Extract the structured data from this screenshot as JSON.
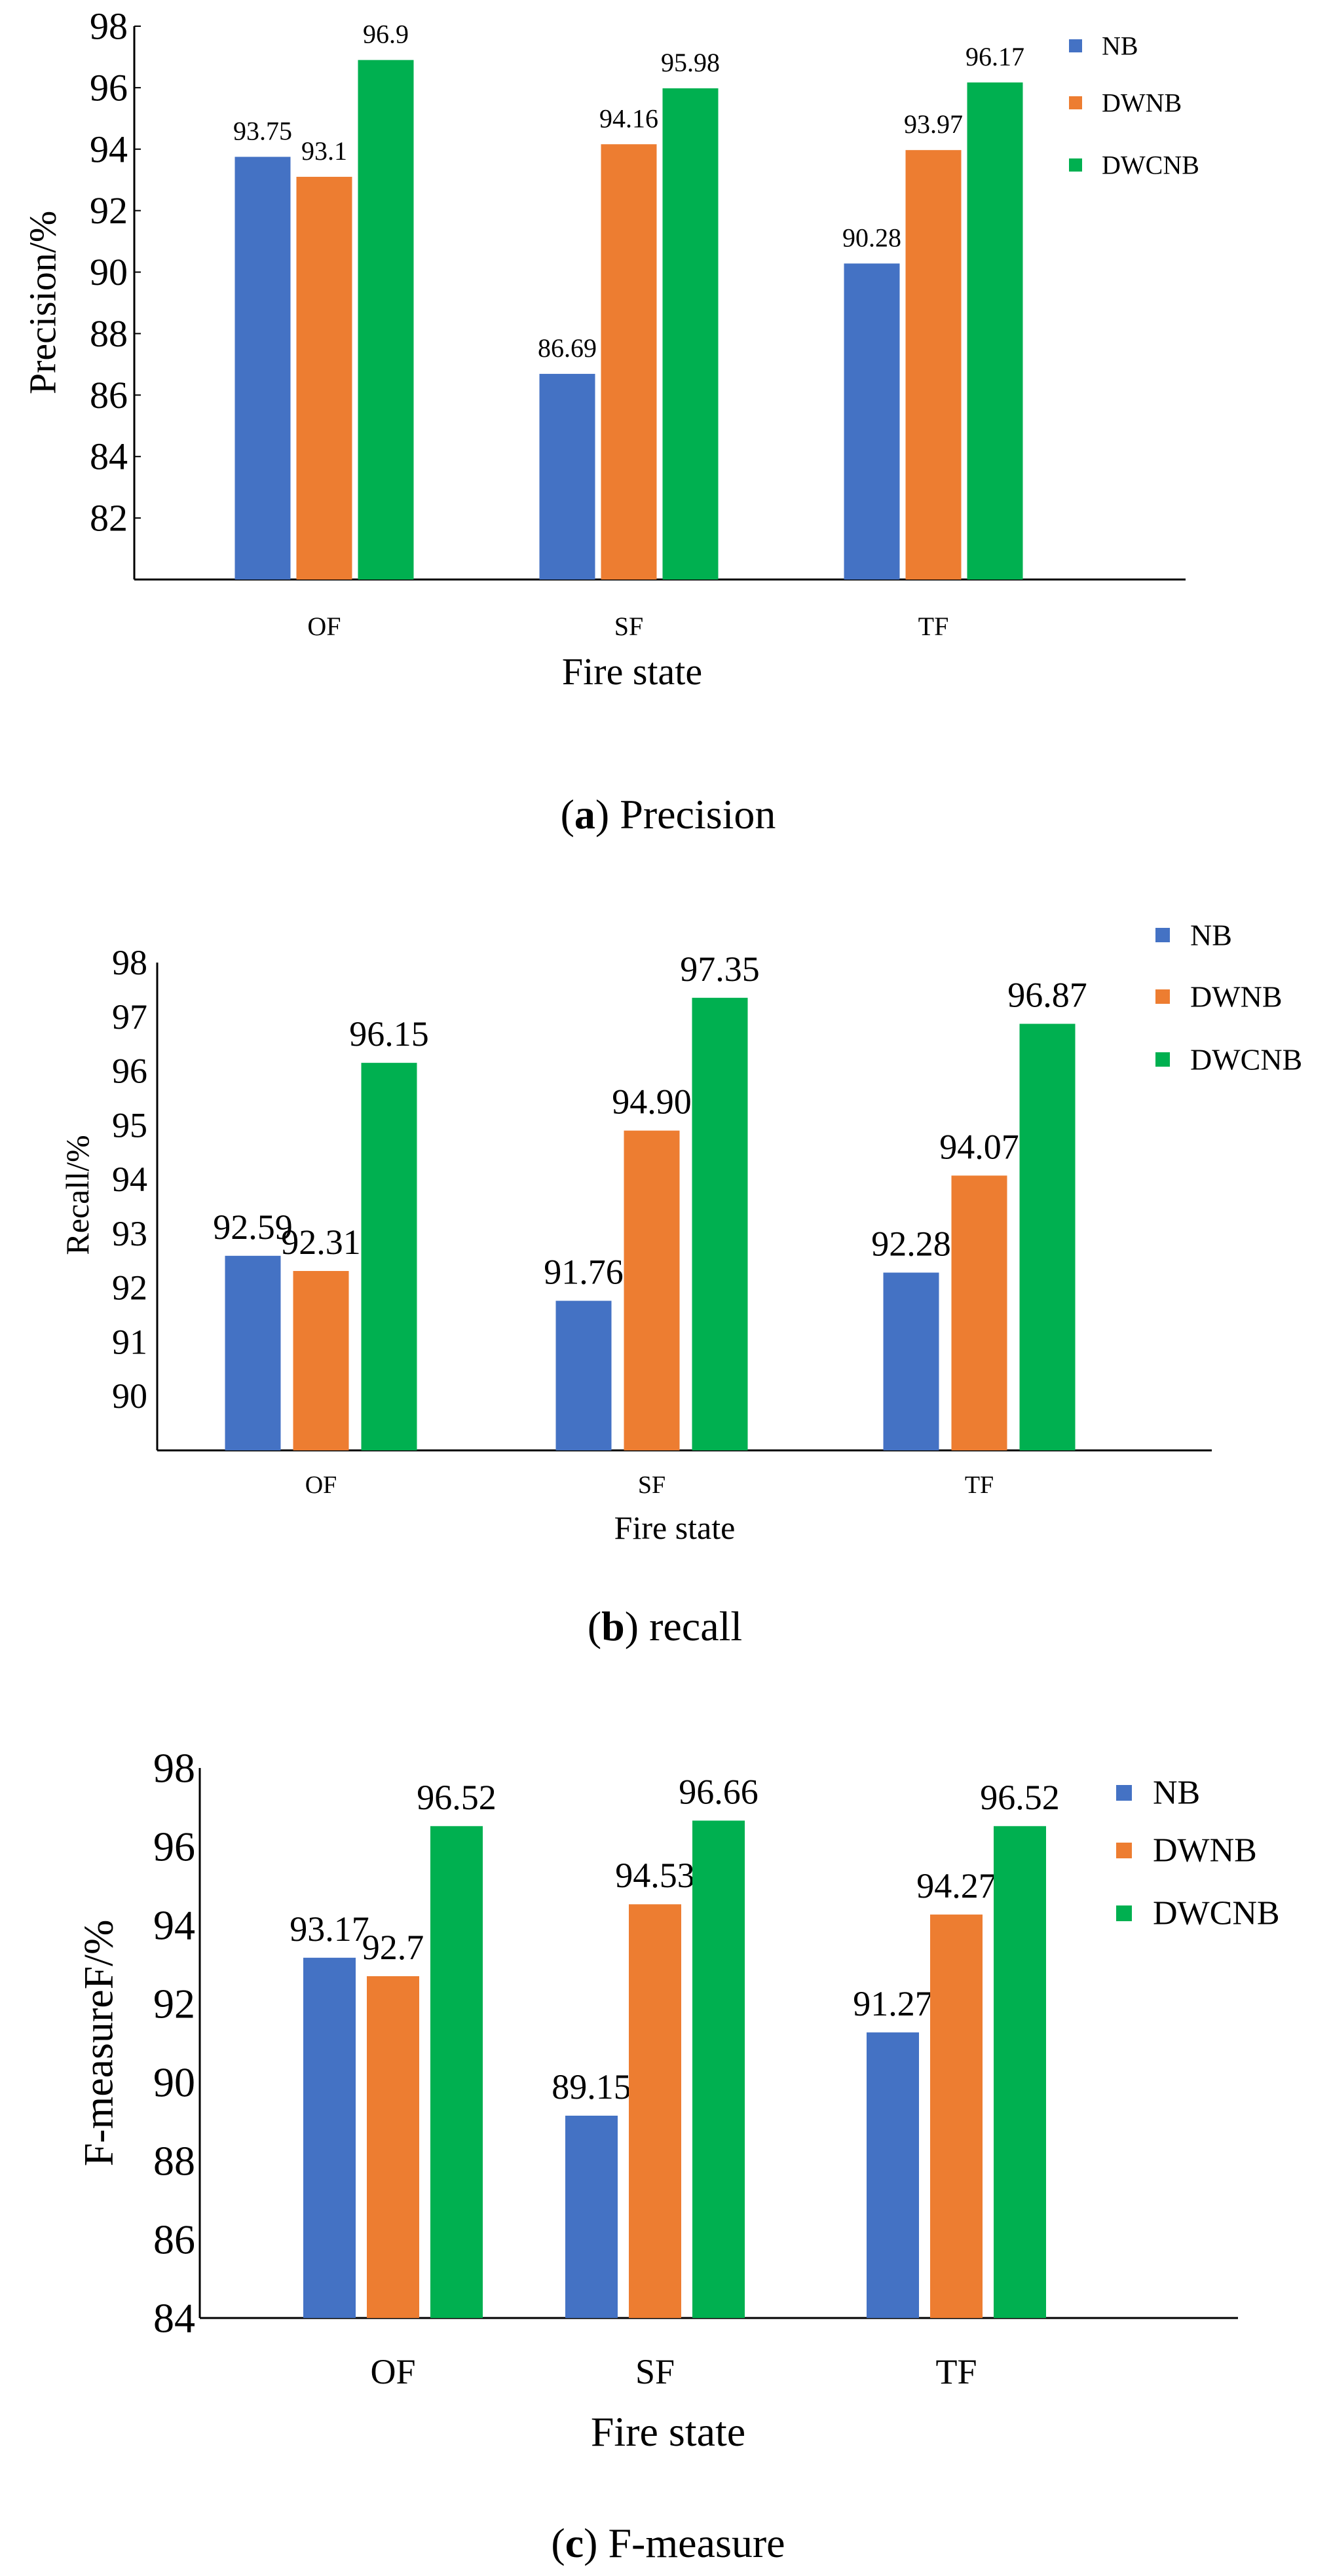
{
  "colors": {
    "NB": "#4472C4",
    "DWNB": "#ED7D31",
    "DWCNB": "#00B050",
    "axis": "#000000"
  },
  "chart_data": [
    {
      "type": "bar",
      "caption_label": "a",
      "caption_text": "Precision",
      "xlabel": "Fire state",
      "ylabel": "Precision/%",
      "ylim": [
        80,
        98
      ],
      "yticks": [
        "82",
        "84",
        "86",
        "88",
        "90",
        "92",
        "94",
        "96",
        "98"
      ],
      "categories": [
        "OF",
        "SF",
        "TF"
      ],
      "series": [
        {
          "name": "NB",
          "values": [
            93.75,
            86.69,
            90.28
          ],
          "labels": [
            "93.75",
            "86.69",
            "90.28"
          ]
        },
        {
          "name": "DWNB",
          "values": [
            93.1,
            94.16,
            93.97
          ],
          "labels": [
            "93.1",
            "94.16",
            "93.97"
          ]
        },
        {
          "name": "DWCNB",
          "values": [
            96.9,
            95.98,
            96.17
          ],
          "labels": [
            "96.9",
            "95.98",
            "96.17"
          ]
        }
      ],
      "legend": "top-right"
    },
    {
      "type": "bar",
      "caption_label": "b",
      "caption_text": "recall",
      "xlabel": "Fire state",
      "ylabel": "Recall/%",
      "ylim": [
        89,
        98
      ],
      "yticks": [
        "90",
        "91",
        "92",
        "93",
        "94",
        "95",
        "96",
        "97",
        "98"
      ],
      "categories": [
        "OF",
        "SF",
        "TF"
      ],
      "series": [
        {
          "name": "NB",
          "values": [
            92.59,
            91.76,
            92.28
          ],
          "labels": [
            "92.59",
            "91.76",
            "92.28"
          ]
        },
        {
          "name": "DWNB",
          "values": [
            92.31,
            94.9,
            94.07
          ],
          "labels": [
            "92.31",
            "94.90",
            "94.07"
          ]
        },
        {
          "name": "DWCNB",
          "values": [
            96.15,
            97.35,
            96.87
          ],
          "labels": [
            "96.15",
            "97.35",
            "96.87"
          ]
        }
      ],
      "legend": "top-right"
    },
    {
      "type": "bar",
      "caption_label": "c",
      "caption_text": "F-measure",
      "xlabel": "Fire state",
      "ylabel": "F-measureF/%",
      "ylim": [
        84,
        98
      ],
      "yticks": [
        "84",
        "86",
        "88",
        "90",
        "92",
        "94",
        "96",
        "98"
      ],
      "categories": [
        "OF",
        "SF",
        "TF"
      ],
      "series": [
        {
          "name": "NB",
          "values": [
            93.17,
            89.15,
            91.27
          ],
          "labels": [
            "93.17",
            "89.15",
            "91.27"
          ]
        },
        {
          "name": "DWNB",
          "values": [
            92.7,
            94.53,
            94.27
          ],
          "labels": [
            "92.7",
            "94.53",
            "94.27"
          ]
        },
        {
          "name": "DWCNB",
          "values": [
            96.52,
            96.66,
            96.52
          ],
          "labels": [
            "96.52",
            "96.66",
            "96.52"
          ]
        }
      ],
      "legend": "top-right"
    }
  ]
}
